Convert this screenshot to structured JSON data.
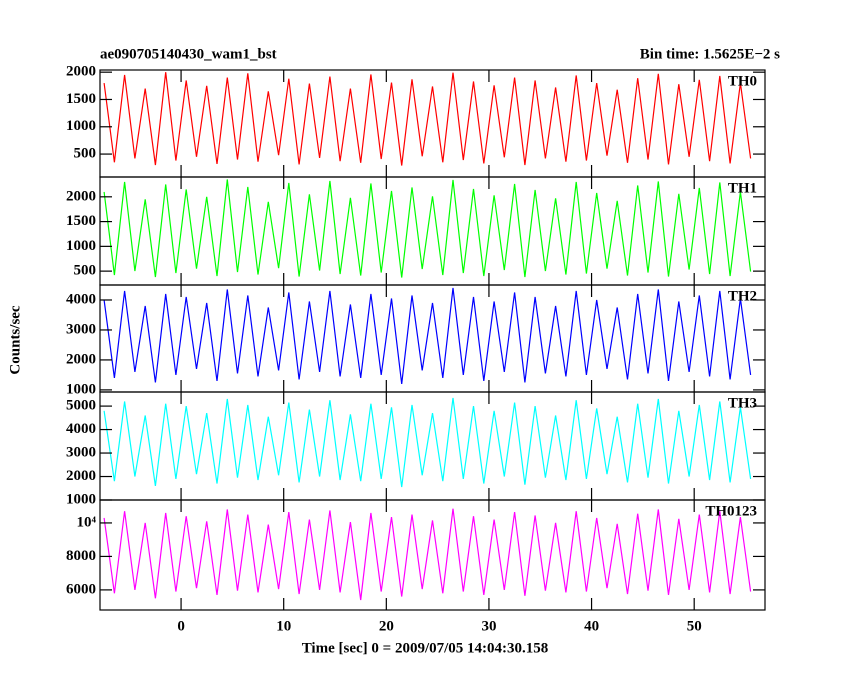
{
  "chart_data": {
    "type": "line",
    "title": "ae090705140430_wam1_bst",
    "subtitle": "Bin time: 1.5625E−2 s",
    "ylabel": "Counts/sec",
    "xlabel": "Time [sec] 0 = 2009/07/05 14:04:30.158",
    "xlim": [
      -7.9,
      56.9
    ],
    "xticks": [
      0,
      10,
      20,
      30,
      40,
      50
    ],
    "x": [
      -7.5,
      -6.5,
      -5.5,
      -4.5,
      -3.5,
      -2.5,
      -1.5,
      -0.5,
      0.5,
      1.5,
      2.5,
      3.5,
      4.5,
      5.5,
      6.5,
      7.5,
      8.5,
      9.5,
      10.5,
      11.5,
      12.5,
      13.5,
      14.5,
      15.5,
      16.5,
      17.5,
      18.5,
      19.5,
      20.5,
      21.5,
      22.5,
      23.5,
      24.5,
      25.5,
      26.5,
      27.5,
      28.5,
      29.5,
      30.5,
      31.5,
      32.5,
      33.5,
      34.5,
      35.5,
      36.5,
      37.5,
      38.5,
      39.5,
      40.5,
      41.5,
      42.5,
      43.5,
      44.5,
      45.5,
      46.5,
      47.5,
      48.5,
      49.5,
      50.5,
      51.5,
      52.5,
      53.5,
      54.5,
      55.5
    ],
    "panels": [
      {
        "name": "TH0",
        "color": "#ff0000",
        "ylim": [
          80,
          2040
        ],
        "yticks": [
          500,
          1000,
          1500,
          2000
        ],
        "values": [
          1800,
          350,
          1950,
          420,
          1700,
          300,
          2000,
          380,
          1850,
          450,
          1750,
          320,
          1900,
          400,
          1980,
          360,
          1650,
          480,
          1880,
          310,
          1790,
          430,
          1920,
          370,
          1700,
          340,
          1960,
          410,
          1810,
          290,
          1870,
          460,
          1740,
          350,
          1990,
          390,
          1830,
          330,
          1760,
          440,
          1900,
          300,
          1850,
          420,
          1720,
          360,
          1940,
          380,
          1800,
          470,
          1680,
          340,
          1890,
          400,
          1970,
          310,
          1780,
          450,
          1860,
          370,
          1930,
          330,
          1800,
          420
        ]
      },
      {
        "name": "TH1",
        "color": "#00ff00",
        "ylim": [
          220,
          2400
        ],
        "yticks": [
          500,
          1000,
          1500,
          2000
        ],
        "values": [
          2100,
          420,
          2300,
          500,
          1950,
          380,
          2250,
          460,
          2150,
          550,
          2000,
          400,
          2350,
          480,
          2200,
          430,
          1900,
          560,
          2280,
          390,
          2050,
          510,
          2320,
          440,
          1980,
          410,
          2270,
          470,
          2120,
          370,
          2190,
          540,
          2010,
          420,
          2340,
          460,
          2160,
          400,
          2030,
          520,
          2260,
          380,
          2140,
          500,
          1970,
          430,
          2300,
          450,
          2080,
          550,
          1920,
          410,
          2230,
          470,
          2310,
          390,
          2060,
          530,
          2180,
          440,
          2290,
          400,
          2100,
          490
        ]
      },
      {
        "name": "TH2",
        "color": "#0000ff",
        "ylim": [
          930,
          4500
        ],
        "yticks": [
          1000,
          2000,
          3000,
          4000
        ],
        "values": [
          4000,
          1400,
          4300,
          1600,
          3800,
          1250,
          4200,
          1500,
          4100,
          1700,
          3900,
          1300,
          4350,
          1550,
          4150,
          1450,
          3750,
          1650,
          4250,
          1350,
          3950,
          1600,
          4300,
          1450,
          3850,
          1400,
          4200,
          1500,
          4050,
          1200,
          4150,
          1650,
          3900,
          1400,
          4400,
          1500,
          4100,
          1300,
          3950,
          1600,
          4250,
          1250,
          4100,
          1550,
          3800,
          1450,
          4300,
          1500,
          4000,
          1700,
          3750,
          1350,
          4200,
          1550,
          4350,
          1300,
          3950,
          1600,
          4150,
          1450,
          4300,
          1350,
          4050,
          1500
        ]
      },
      {
        "name": "TH3",
        "color": "#00ffff",
        "ylim": [
          1000,
          5600
        ],
        "yticks": [
          1000,
          2000,
          3000,
          4000,
          5000
        ],
        "values": [
          4800,
          1800,
          5200,
          2000,
          4600,
          1600,
          5100,
          1900,
          5000,
          2100,
          4700,
          1700,
          5300,
          1950,
          5050,
          1850,
          4550,
          2050,
          5150,
          1750,
          4850,
          2000,
          5250,
          1850,
          4650,
          1800,
          5100,
          1900,
          4950,
          1550,
          5050,
          2050,
          4700,
          1800,
          5350,
          1900,
          5000,
          1700,
          4800,
          2000,
          5150,
          1650,
          5000,
          1950,
          4600,
          1850,
          5250,
          1900,
          4900,
          2100,
          4550,
          1750,
          5100,
          1950,
          5300,
          1700,
          4800,
          2000,
          5050,
          1850,
          5200,
          1750,
          4950,
          1900
        ]
      },
      {
        "name": "TH0123",
        "color": "#ff00ff",
        "ylim": [
          4800,
          11370
        ],
        "yticks": [
          6000,
          8000,
          {
            "value": 10000,
            "label": "10⁴"
          }
        ],
        "values": [
          10300,
          5800,
          10700,
          6000,
          10000,
          5500,
          10600,
          5900,
          10400,
          6100,
          10100,
          5700,
          10800,
          5950,
          10500,
          5850,
          9900,
          6050,
          10650,
          5750,
          10200,
          6000,
          10750,
          5850,
          10050,
          5400,
          10600,
          5900,
          10350,
          5600,
          10500,
          6050,
          10150,
          5800,
          10850,
          5900,
          10400,
          5700,
          10200,
          6000,
          10650,
          5650,
          10450,
          5950,
          10000,
          5850,
          10700,
          5900,
          10300,
          6100,
          9950,
          5750,
          10550,
          5950,
          10800,
          5700,
          10250,
          6000,
          10500,
          5850,
          10700,
          5750,
          10350,
          5900
        ]
      }
    ]
  }
}
